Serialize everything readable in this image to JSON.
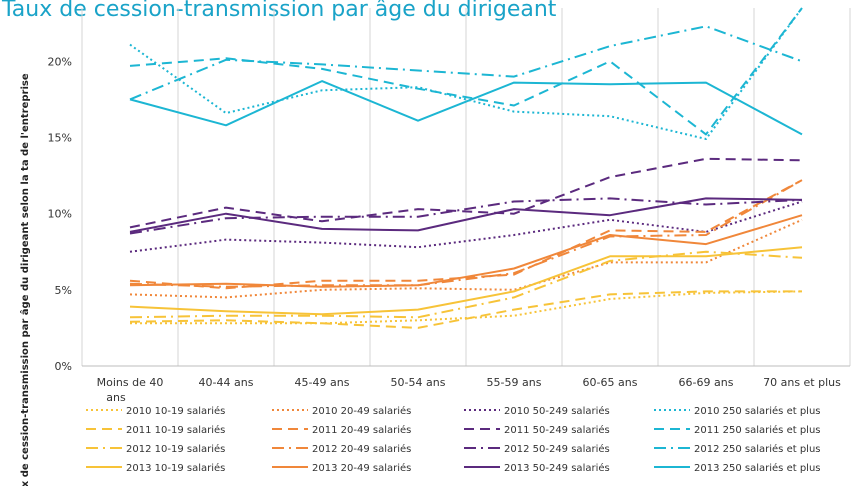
{
  "chart_data": {
    "type": "line",
    "title": "Taux de cession-transmission par âge du dirigeant",
    "ylabel": "Taux de cession-transmission par âge du dirigeant selon la ta de l'entreprise",
    "ylim": [
      0,
      23.5
    ],
    "yticks": [
      "0%",
      "5%",
      "10%",
      "15%",
      "20%"
    ],
    "categories": [
      "Moins de 40 ans",
      "40-44 ans",
      "45-49 ans",
      "50-54 ans",
      "55-59 ans",
      "60-65 ans",
      "66-69 ans",
      "70 ans et plus"
    ],
    "series": [
      {
        "name": "2010 10-19 salariés",
        "values": [
          2.8,
          2.8,
          2.8,
          3.0,
          3.3,
          4.4,
          4.8,
          4.9
        ],
        "color": "#f7c338",
        "dash": "dot"
      },
      {
        "name": "2010 20-49 salariés",
        "values": [
          4.7,
          4.5,
          5.0,
          5.1,
          5.0,
          6.8,
          6.8,
          9.6
        ],
        "color": "#f0873a",
        "dash": "dot"
      },
      {
        "name": "2010 50-249 salariés",
        "values": [
          7.5,
          8.3,
          8.1,
          7.8,
          8.6,
          9.6,
          8.8,
          10.8
        ],
        "color": "#5b2a7e",
        "dash": "dot"
      },
      {
        "name": "2010 250 salariés et plus",
        "values": [
          21.1,
          16.6,
          18.1,
          18.3,
          16.7,
          16.4,
          14.9,
          23.5
        ],
        "color": "#1cb6d3",
        "dash": "dot"
      },
      {
        "name": "2011 10-19 salariés",
        "values": [
          2.9,
          3.0,
          2.8,
          2.5,
          3.7,
          4.7,
          4.9,
          4.9
        ],
        "color": "#f7c338",
        "dash": "dash"
      },
      {
        "name": "2011 20-49 salariés",
        "values": [
          5.6,
          5.1,
          5.6,
          5.6,
          6.0,
          8.9,
          8.8,
          12.2
        ],
        "color": "#f0873a",
        "dash": "dash"
      },
      {
        "name": "2011 50-249 salariés",
        "values": [
          9.1,
          10.4,
          9.5,
          10.3,
          10.0,
          12.4,
          13.6,
          13.5
        ],
        "color": "#5b2a7e",
        "dash": "dash"
      },
      {
        "name": "2011 250 salariés et plus",
        "values": [
          19.7,
          20.2,
          19.5,
          18.2,
          17.1,
          20.0,
          15.2,
          23.5
        ],
        "color": "#1cb6d3",
        "dash": "dash"
      },
      {
        "name": "2012 10-19 salariés",
        "values": [
          3.2,
          3.3,
          3.3,
          3.2,
          4.5,
          6.9,
          7.5,
          7.1
        ],
        "color": "#f7c338",
        "dash": "dashdot"
      },
      {
        "name": "2012 20-49 salariés",
        "values": [
          5.4,
          5.2,
          5.3,
          5.3,
          6.1,
          8.5,
          8.6,
          12.2
        ],
        "color": "#f0873a",
        "dash": "dashdot"
      },
      {
        "name": "2012 50-249 salariés",
        "values": [
          8.7,
          9.7,
          9.8,
          9.8,
          10.8,
          11.0,
          10.6,
          10.9
        ],
        "color": "#5b2a7e",
        "dash": "dashdot"
      },
      {
        "name": "2012 250 salariés et plus",
        "values": [
          17.5,
          20.1,
          19.8,
          19.4,
          19.0,
          21.0,
          22.3,
          20.0
        ],
        "color": "#1cb6d3",
        "dash": "dashdot"
      },
      {
        "name": "2013 10-19 salariés",
        "values": [
          3.9,
          3.6,
          3.4,
          3.7,
          4.9,
          7.2,
          7.2,
          7.8
        ],
        "color": "#f7c338",
        "dash": "solid"
      },
      {
        "name": "2013 20-49 salariés",
        "values": [
          5.3,
          5.4,
          5.2,
          5.3,
          6.4,
          8.6,
          8.0,
          9.9
        ],
        "color": "#f0873a",
        "dash": "solid"
      },
      {
        "name": "2013 50-249 salariés",
        "values": [
          8.8,
          10.0,
          9.0,
          8.9,
          10.3,
          9.9,
          11.0,
          10.9
        ],
        "color": "#5b2a7e",
        "dash": "solid"
      },
      {
        "name": "2013 250 salariés et plus",
        "values": [
          17.5,
          15.8,
          18.7,
          16.1,
          18.6,
          18.5,
          18.6,
          15.2
        ],
        "color": "#1cb6d3",
        "dash": "solid"
      }
    ],
    "grid": "vertical",
    "legend": "bottom"
  }
}
